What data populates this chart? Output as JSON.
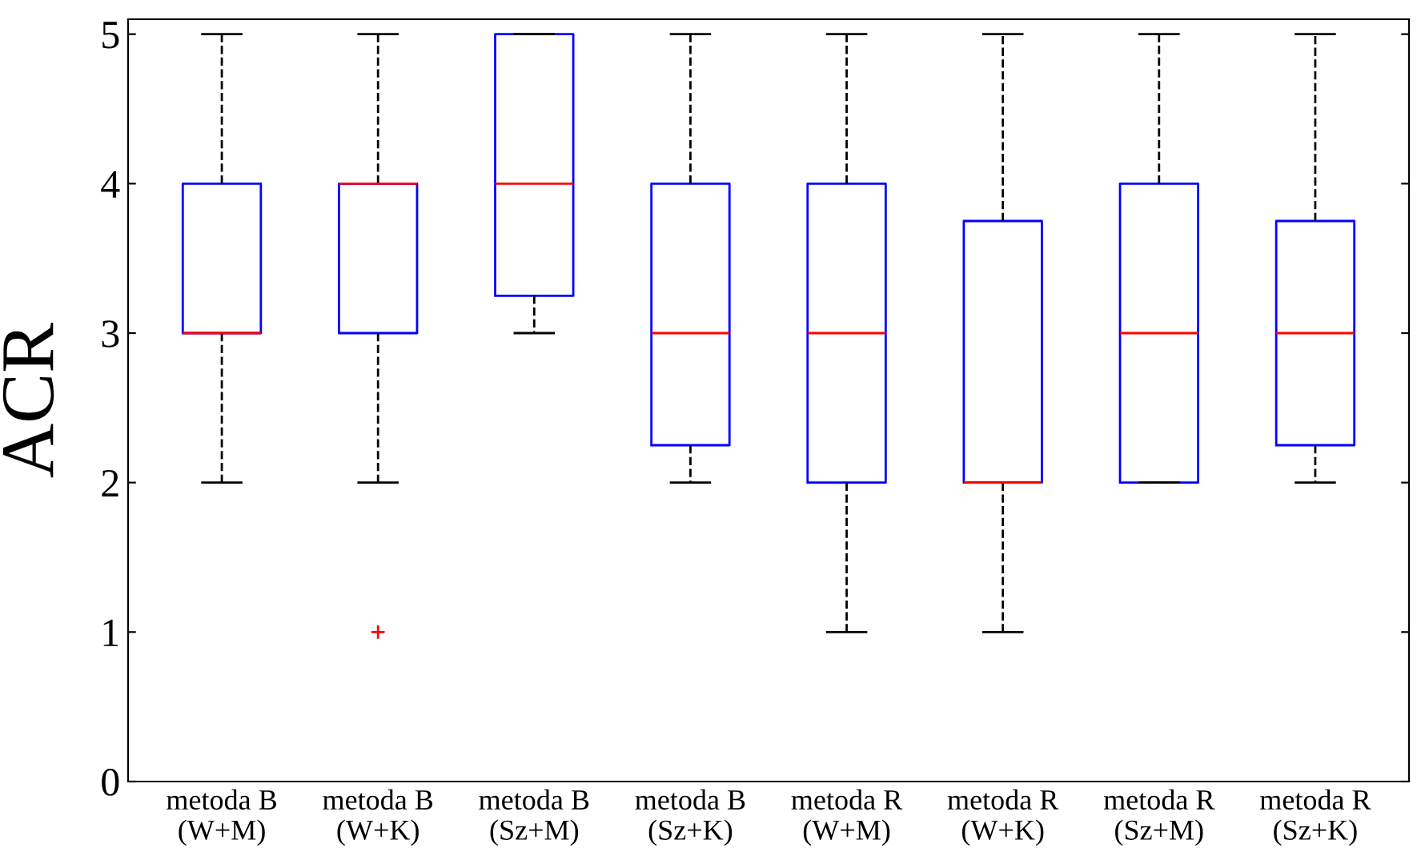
{
  "chart_data": {
    "type": "box",
    "ylabel": "ACR",
    "categories": [
      "metoda B\n(W+M)",
      "metoda B\n(W+K)",
      "metoda B\n(Sz+M)",
      "metoda B\n(Sz+K)",
      "metoda R\n(W+M)",
      "metoda R\n(W+K)",
      "metoda R\n(Sz+M)",
      "metoda R\n(Sz+K)"
    ],
    "boxes": [
      {
        "low": 2,
        "q1": 3,
        "median": 3,
        "q3": 4,
        "high": 5
      },
      {
        "low": 2,
        "q1": 3,
        "median": 4,
        "q3": 4,
        "high": 5,
        "outliers": [
          1
        ]
      },
      {
        "low": 3,
        "q1": 3.25,
        "median": 4,
        "q3": 5,
        "high": 5
      },
      {
        "low": 2,
        "q1": 2.25,
        "median": 3,
        "q3": 4,
        "high": 5
      },
      {
        "low": 1,
        "q1": 2,
        "median": 3,
        "q3": 4,
        "high": 5
      },
      {
        "low": 1,
        "q1": 2,
        "median": 2,
        "q3": 3.75,
        "high": 5
      },
      {
        "low": 2,
        "q1": 2,
        "median": 3,
        "q3": 4,
        "high": 5
      },
      {
        "low": 2,
        "q1": 2.25,
        "median": 3,
        "q3": 3.75,
        "high": 5
      }
    ],
    "color": "#0000ff",
    "ylim": [
      0,
      5.1
    ],
    "yticks": [
      0,
      1,
      2,
      3,
      4,
      5
    ],
    "grid": false
  }
}
